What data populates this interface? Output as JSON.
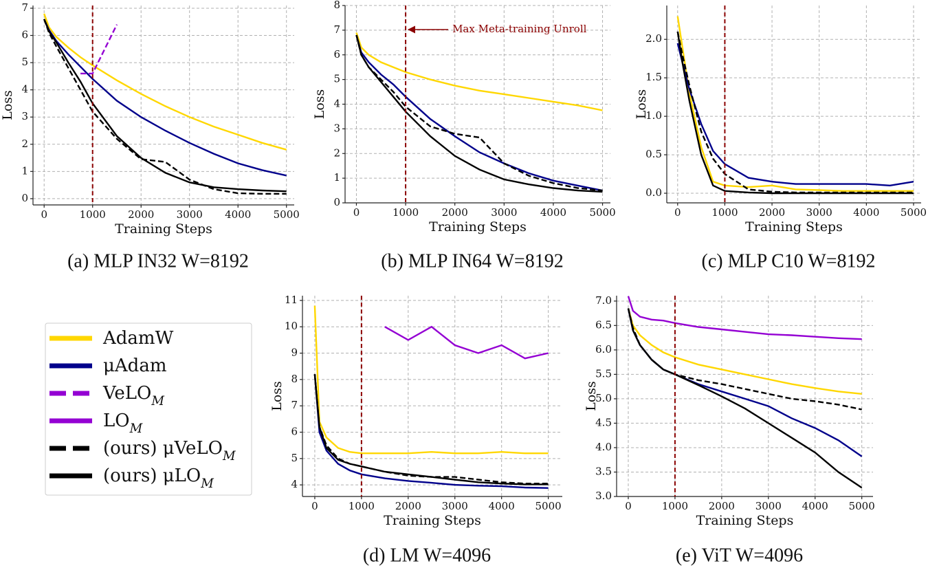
{
  "chart_data": [
    {
      "type": "line",
      "title": "(a) MLP IN32 W=8192",
      "xlabel": "Training Steps",
      "ylabel": "Loss",
      "x": [
        0,
        100,
        250,
        500,
        750,
        1000,
        1500,
        2000,
        2500,
        3000,
        3500,
        4000,
        4500,
        5000
      ],
      "xlim": [
        -230,
        5160
      ],
      "ylim": [
        -0.23,
        7.1
      ],
      "xticks": [
        0,
        1000,
        2000,
        3000,
        4000,
        5000
      ],
      "yticks": [
        0,
        1,
        2,
        3,
        4,
        5,
        6,
        7
      ],
      "grid": true,
      "vline": 1000,
      "series": [
        {
          "name": "AdamW",
          "color": "#FFD700",
          "linestyle": "solid",
          "values": [
            6.8,
            6.3,
            5.95,
            5.55,
            5.2,
            4.9,
            4.35,
            3.85,
            3.4,
            3.0,
            2.65,
            2.35,
            2.05,
            1.8
          ]
        },
        {
          "name": "μAdam",
          "color": "#00008B",
          "linestyle": "solid",
          "values": [
            6.6,
            6.2,
            5.8,
            5.3,
            4.85,
            4.4,
            3.6,
            3.0,
            2.5,
            2.05,
            1.65,
            1.3,
            1.05,
            0.85
          ]
        },
        {
          "name": "VeLO_M",
          "color": "#9400D3",
          "linestyle": "dashed",
          "values": [
            null,
            null,
            null,
            null,
            4.6,
            4.6,
            6.4,
            null,
            null,
            null,
            null,
            null,
            null,
            null
          ]
        },
        {
          "name": "(ours) μVeLO_M",
          "color": "#000000",
          "linestyle": "dashed",
          "values": [
            6.6,
            6.1,
            5.6,
            4.8,
            4.0,
            3.2,
            2.2,
            1.45,
            1.35,
            0.7,
            0.35,
            0.2,
            0.18,
            0.18
          ]
        },
        {
          "name": "(ours) μLO_M",
          "color": "#000000",
          "linestyle": "solid",
          "values": [
            6.6,
            6.15,
            5.75,
            5.0,
            4.3,
            3.5,
            2.3,
            1.5,
            0.95,
            0.6,
            0.42,
            0.35,
            0.3,
            0.27
          ]
        }
      ]
    },
    {
      "type": "line",
      "title": "(b) MLP IN64 W=8192",
      "xlabel": "Training Steps",
      "ylabel": "Loss",
      "annotation": "Max Meta-training Unroll",
      "x": [
        0,
        100,
        250,
        500,
        750,
        1000,
        1500,
        2000,
        2500,
        3000,
        3500,
        4000,
        4500,
        5000
      ],
      "xlim": [
        -230,
        5160
      ],
      "ylim": [
        0,
        8
      ],
      "xticks": [
        0,
        1000,
        2000,
        3000,
        4000,
        5000
      ],
      "yticks": [
        0,
        1,
        2,
        3,
        4,
        5,
        6,
        7,
        8
      ],
      "grid": true,
      "vline": 1000,
      "series": [
        {
          "name": "AdamW",
          "color": "#FFD700",
          "linestyle": "solid",
          "values": [
            6.9,
            6.3,
            6.0,
            5.7,
            5.5,
            5.3,
            5.0,
            4.75,
            4.55,
            4.4,
            4.25,
            4.1,
            3.95,
            3.75
          ]
        },
        {
          "name": "μAdam",
          "color": "#00008B",
          "linestyle": "solid",
          "values": [
            6.8,
            6.1,
            5.7,
            5.2,
            4.8,
            4.3,
            3.4,
            2.7,
            2.05,
            1.6,
            1.2,
            0.9,
            0.7,
            0.5
          ]
        },
        {
          "name": "(ours) μVeLO_M",
          "color": "#000000",
          "linestyle": "dashed",
          "values": [
            6.8,
            6.0,
            5.5,
            5.0,
            4.5,
            3.9,
            3.1,
            2.8,
            2.65,
            1.6,
            1.1,
            0.8,
            0.6,
            0.5
          ]
        },
        {
          "name": "(ours) μLO_M",
          "color": "#000000",
          "linestyle": "solid",
          "values": [
            6.8,
            6.0,
            5.5,
            4.9,
            4.3,
            3.7,
            2.7,
            1.9,
            1.35,
            0.95,
            0.75,
            0.6,
            0.5,
            0.45
          ]
        }
      ]
    },
    {
      "type": "line",
      "title": "(c) MLP C10 W=8192",
      "xlabel": "Training Steps",
      "ylabel": "Loss",
      "x": [
        0,
        100,
        250,
        500,
        750,
        1000,
        1500,
        2000,
        2500,
        3000,
        3500,
        4000,
        4500,
        5000
      ],
      "xlim": [
        -230,
        5160
      ],
      "ylim": [
        -0.125,
        2.44
      ],
      "xticks": [
        0,
        1000,
        2000,
        3000,
        4000,
        5000
      ],
      "yticks": [
        {
          "value": 0,
          "label": "0.0"
        },
        0.5,
        {
          "value": 1,
          "label": "1.0"
        },
        1.5,
        {
          "value": 2,
          "label": "2.0"
        }
      ],
      "grid": true,
      "vline": 1000,
      "series": [
        {
          "name": "AdamW",
          "color": "#FFD700",
          "linestyle": "solid",
          "values": [
            2.3,
            1.9,
            1.3,
            0.6,
            0.15,
            0.1,
            0.08,
            0.1,
            0.05,
            0.04,
            0.03,
            0.03,
            0.03,
            0.03
          ]
        },
        {
          "name": "μAdam",
          "color": "#00008B",
          "linestyle": "solid",
          "values": [
            1.95,
            1.7,
            1.35,
            0.9,
            0.55,
            0.38,
            0.2,
            0.15,
            0.12,
            0.12,
            0.12,
            0.12,
            0.1,
            0.15
          ]
        },
        {
          "name": "(ours) μVeLO_M",
          "color": "#000000",
          "linestyle": "dashed",
          "values": [
            2.1,
            1.8,
            1.4,
            0.8,
            0.45,
            0.25,
            0.05,
            0.02,
            0.01,
            0.01,
            0.01,
            0.01,
            0.01,
            0.01
          ]
        },
        {
          "name": "(ours) μLO_M",
          "color": "#000000",
          "linestyle": "solid",
          "values": [
            2.1,
            1.7,
            1.2,
            0.5,
            0.1,
            0.03,
            0.01,
            0,
            0,
            0,
            0,
            0,
            0,
            0
          ]
        }
      ]
    },
    {
      "type": "line",
      "title": "(d) LM W=4096",
      "xlabel": "Training Steps",
      "ylabel": "Loss",
      "x": [
        0,
        100,
        250,
        500,
        750,
        1000,
        1500,
        2000,
        2500,
        3000,
        3500,
        4000,
        4500,
        5000
      ],
      "xlim": [
        -264,
        5300
      ],
      "ylim": [
        3.56,
        11.18
      ],
      "xticks": [
        0,
        1000,
        2000,
        3000,
        4000,
        5000
      ],
      "yticks": [
        4,
        5,
        6,
        7,
        8,
        9,
        10,
        11
      ],
      "grid": true,
      "vline": 1000,
      "series": [
        {
          "name": "AdamW",
          "color": "#FFD700",
          "linestyle": "solid",
          "values": [
            10.8,
            6.4,
            5.8,
            5.4,
            5.25,
            5.2,
            5.2,
            5.2,
            5.25,
            5.2,
            5.2,
            5.25,
            5.2,
            5.2
          ]
        },
        {
          "name": "μAdam",
          "color": "#00008B",
          "linestyle": "solid",
          "values": [
            8.2,
            6.0,
            5.3,
            4.8,
            4.55,
            4.4,
            4.25,
            4.15,
            4.08,
            4.0,
            3.97,
            3.95,
            3.9,
            3.88
          ]
        },
        {
          "name": "LO_M",
          "color": "#9400D3",
          "linestyle": "solid",
          "values": [
            null,
            null,
            null,
            null,
            null,
            null,
            10.0,
            9.5,
            10.0,
            9.3,
            9.0,
            9.3,
            8.8,
            9.0
          ]
        },
        {
          "name": "(ours) μVeLO_M",
          "color": "#000000",
          "linestyle": "dashed",
          "values": [
            8.2,
            6.2,
            5.5,
            5.0,
            4.8,
            4.7,
            4.5,
            4.35,
            4.3,
            4.3,
            4.2,
            4.1,
            4.05,
            4.05
          ]
        },
        {
          "name": "(ours) μLO_M",
          "color": "#000000",
          "linestyle": "solid",
          "values": [
            8.2,
            6.2,
            5.4,
            4.95,
            4.8,
            4.7,
            4.5,
            4.4,
            4.3,
            4.2,
            4.1,
            4.05,
            4.02,
            4.02
          ]
        }
      ]
    },
    {
      "type": "line",
      "title": "(e) ViT W=4096",
      "xlabel": "Training Steps",
      "ylabel": "Loss",
      "x": [
        0,
        100,
        250,
        500,
        750,
        1000,
        1500,
        2000,
        2500,
        3000,
        3500,
        4000,
        4500,
        5000
      ],
      "xlim": [
        -250,
        5240
      ],
      "ylim": [
        3.0,
        7.11
      ],
      "xticks": [
        0,
        1000,
        2000,
        3000,
        4000,
        5000
      ],
      "yticks": [
        {
          "value": 3,
          "label": "3.0"
        },
        3.5,
        {
          "value": 4,
          "label": "4.0"
        },
        4.5,
        {
          "value": 5,
          "label": "5.0"
        },
        5.5,
        {
          "value": 6,
          "label": "6.0"
        },
        6.5,
        {
          "value": 7,
          "label": "7.0"
        }
      ],
      "grid": true,
      "vline": 1000,
      "series": [
        {
          "name": "AdamW",
          "color": "#FFD700",
          "linestyle": "solid",
          "values": [
            6.85,
            6.5,
            6.3,
            6.1,
            5.95,
            5.85,
            5.7,
            5.6,
            5.5,
            5.4,
            5.3,
            5.22,
            5.15,
            5.1
          ]
        },
        {
          "name": "μAdam",
          "color": "#00008B",
          "linestyle": "solid",
          "values": [
            6.85,
            6.4,
            6.1,
            5.8,
            5.6,
            5.5,
            5.3,
            5.15,
            5.0,
            4.85,
            4.6,
            4.4,
            4.15,
            3.82
          ]
        },
        {
          "name": "LO_M",
          "color": "#9400D3",
          "linestyle": "solid",
          "values": [
            7.1,
            6.8,
            6.68,
            6.62,
            6.6,
            6.55,
            6.47,
            6.42,
            6.37,
            6.32,
            6.3,
            6.27,
            6.24,
            6.22
          ]
        },
        {
          "name": "(ours) μVeLO_M",
          "color": "#000000",
          "linestyle": "dashed",
          "values": [
            6.85,
            6.45,
            6.1,
            5.8,
            5.6,
            5.5,
            5.38,
            5.3,
            5.2,
            5.1,
            5.0,
            4.95,
            4.88,
            4.78
          ]
        },
        {
          "name": "(ours) μLO_M",
          "color": "#000000",
          "linestyle": "solid",
          "values": [
            6.85,
            6.4,
            6.1,
            5.8,
            5.6,
            5.5,
            5.28,
            5.05,
            4.8,
            4.5,
            4.2,
            3.9,
            3.5,
            3.18
          ]
        }
      ]
    }
  ]
}
